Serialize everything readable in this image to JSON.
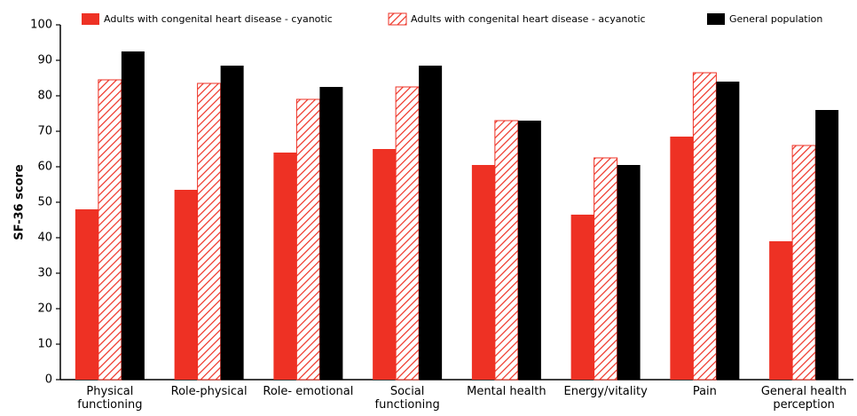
{
  "chart_data": {
    "type": "bar",
    "y_label": "SF-36 score",
    "categories": [
      "Physical\nfunctioning",
      "Role-physical",
      "Role- emotional",
      "Social\nfunctioning",
      "Mental health",
      "Energy/vitality",
      "Pain",
      "General health\nperception"
    ],
    "series": [
      {
        "name": "Adults with congenital heart disease - cyanotic",
        "color": "#ee3124",
        "pattern": "solid",
        "values": [
          48,
          53.5,
          64,
          65,
          60.5,
          46.5,
          68.5,
          39
        ]
      },
      {
        "name": "Adults with congenital heart disease - acyanotic",
        "color": "#ee3124",
        "pattern": "hatch",
        "values": [
          84.5,
          83.5,
          79,
          82.5,
          73,
          62.5,
          86.5,
          66
        ]
      },
      {
        "name": "General population",
        "color": "#000000",
        "pattern": "solid",
        "values": [
          92.5,
          88.5,
          82.5,
          88.5,
          73,
          60.5,
          84,
          76
        ]
      }
    ],
    "ylim": [
      0,
      100
    ],
    "yticks": [
      0,
      10,
      20,
      30,
      40,
      50,
      60,
      70,
      80,
      90,
      100
    ],
    "grid": false
  }
}
